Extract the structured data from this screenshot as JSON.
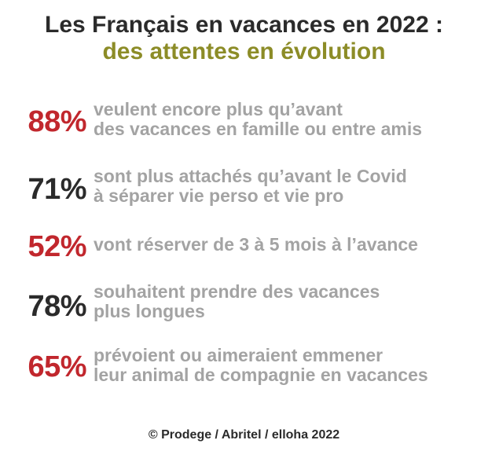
{
  "title": {
    "line1": "Les Français en vacances en 2022 :",
    "line2": "des attentes en évolution"
  },
  "colors": {
    "title": "#2b2b2b",
    "subtitle": "#8c8c27",
    "pct_red": "#c1272d",
    "pct_dark": "#2b2b2b",
    "description": "#a3a3a3"
  },
  "stats": [
    {
      "percent": "88%",
      "color": "red",
      "lines": [
        "veulent encore plus qu’avant",
        "des vacances en famille ou entre amis"
      ]
    },
    {
      "percent": "71%",
      "color": "dark",
      "lines": [
        "sont plus attachés qu’avant le Covid",
        "à séparer vie perso et vie pro"
      ]
    },
    {
      "percent": "52%",
      "color": "red",
      "lines": [
        "vont réserver de 3 à 5 mois à l’avance"
      ]
    },
    {
      "percent": "78%",
      "color": "dark",
      "lines": [
        "souhaitent prendre des vacances",
        "plus longues"
      ]
    },
    {
      "percent": "65%",
      "color": "red",
      "lines": [
        "prévoient ou aimeraient emmener",
        "leur animal de compagnie en vacances"
      ]
    }
  ],
  "footer": {
    "credit": "© Prodege / Abritel / elloha 2022"
  }
}
